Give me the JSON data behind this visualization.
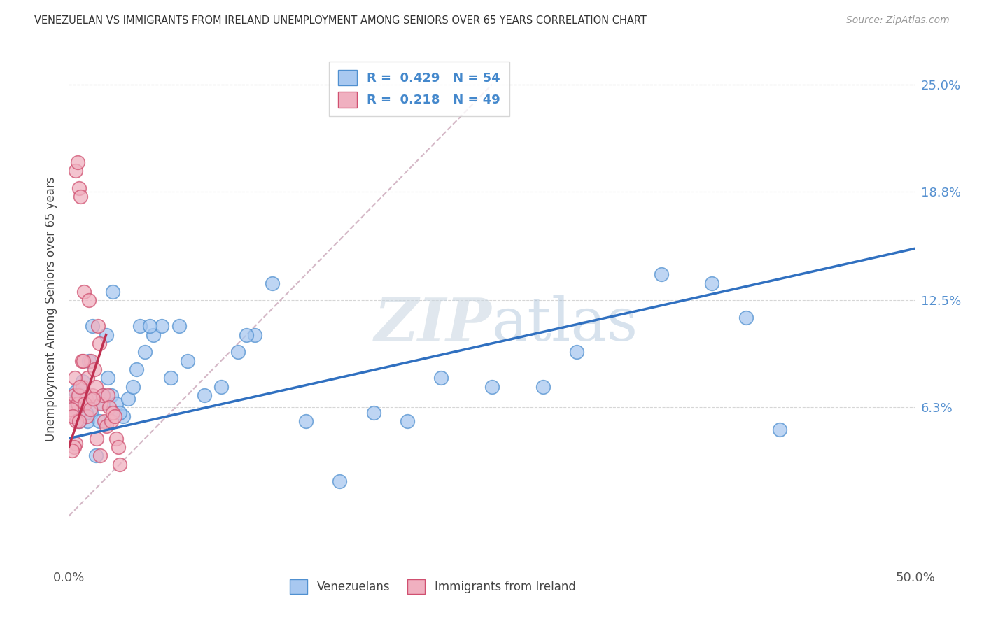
{
  "title": "VENEZUELAN VS IMMIGRANTS FROM IRELAND UNEMPLOYMENT AMONG SENIORS OVER 65 YEARS CORRELATION CHART",
  "source": "Source: ZipAtlas.com",
  "ylabel": "Unemployment Among Seniors over 65 years",
  "xlim": [
    0,
    50
  ],
  "ylim": [
    -3,
    27
  ],
  "yticks_vals": [
    6.3,
    12.5,
    18.8,
    25.0
  ],
  "xticks_vals": [
    0,
    12.5,
    25.0,
    37.5,
    50.0
  ],
  "legend_blue_R": "0.429",
  "legend_blue_N": "54",
  "legend_pink_R": "0.218",
  "legend_pink_N": "49",
  "blue_scatter_color": "#a8c8f0",
  "blue_edge_color": "#5090d0",
  "pink_scatter_color": "#f0b0c0",
  "pink_edge_color": "#d05070",
  "blue_line_color": "#3070c0",
  "pink_line_color": "#c03050",
  "diag_line_color": "#d0b0c0",
  "watermark_zip_color": "#c5d5e5",
  "watermark_atlas_color": "#b0c8e0",
  "blue_x": [
    0.3,
    0.5,
    0.7,
    0.9,
    1.1,
    1.3,
    1.5,
    1.8,
    2.0,
    2.3,
    2.5,
    2.8,
    3.2,
    3.5,
    4.0,
    4.5,
    5.0,
    5.5,
    6.0,
    7.0,
    8.0,
    9.0,
    10.0,
    11.0,
    12.0,
    14.0,
    16.0,
    18.0,
    20.0,
    22.0,
    25.0,
    28.0,
    30.0,
    35.0,
    38.0,
    40.0,
    42.0,
    0.2,
    0.4,
    0.6,
    0.8,
    1.0,
    1.2,
    1.4,
    1.6,
    2.0,
    2.2,
    2.6,
    3.0,
    3.8,
    4.2,
    4.8,
    6.5,
    10.5
  ],
  "blue_y": [
    6.3,
    6.5,
    7.0,
    6.8,
    5.5,
    6.0,
    6.8,
    5.5,
    6.5,
    8.0,
    7.0,
    6.5,
    5.8,
    6.8,
    8.5,
    9.5,
    10.5,
    11.0,
    8.0,
    9.0,
    7.0,
    7.5,
    9.5,
    10.5,
    13.5,
    5.5,
    2.0,
    6.0,
    5.5,
    8.0,
    7.5,
    7.5,
    9.5,
    14.0,
    13.5,
    11.5,
    5.0,
    6.5,
    7.2,
    5.5,
    7.8,
    6.0,
    9.0,
    11.0,
    3.5,
    7.0,
    10.5,
    13.0,
    6.0,
    7.5,
    11.0,
    11.0,
    11.0,
    10.5
  ],
  "pink_x": [
    0.1,
    0.2,
    0.3,
    0.4,
    0.5,
    0.5,
    0.6,
    0.7,
    0.8,
    0.9,
    1.0,
    1.1,
    1.2,
    1.3,
    1.4,
    1.5,
    1.6,
    1.7,
    1.8,
    1.9,
    2.0,
    2.1,
    2.2,
    2.3,
    2.4,
    2.5,
    2.6,
    2.7,
    2.8,
    2.9,
    3.0,
    0.15,
    0.35,
    0.55,
    0.65,
    0.75,
    0.85,
    0.95,
    1.05,
    1.25,
    1.45,
    1.65,
    1.85,
    0.45,
    0.25,
    0.6,
    0.4,
    0.3,
    0.2
  ],
  "pink_y": [
    6.0,
    6.5,
    7.0,
    20.0,
    20.5,
    6.5,
    19.0,
    18.5,
    7.5,
    13.0,
    6.8,
    8.0,
    12.5,
    9.0,
    7.0,
    8.5,
    7.5,
    11.0,
    10.0,
    6.5,
    7.0,
    5.5,
    5.2,
    7.0,
    6.3,
    5.5,
    6.0,
    5.8,
    4.5,
    4.0,
    3.0,
    6.2,
    8.0,
    7.0,
    7.5,
    9.0,
    9.0,
    6.5,
    5.8,
    6.2,
    6.8,
    4.5,
    3.5,
    5.5,
    5.8,
    5.5,
    4.2,
    4.0,
    3.8
  ],
  "blue_line_x0": 0.0,
  "blue_line_x1": 50.0,
  "blue_line_y0": 4.5,
  "blue_line_y1": 15.5,
  "pink_line_x0": 0.0,
  "pink_line_x1": 2.2,
  "pink_line_y0": 4.0,
  "pink_line_y1": 10.5,
  "diag_x0": 0.0,
  "diag_x1": 25.0,
  "diag_y0": 0.0,
  "diag_y1": 25.0
}
